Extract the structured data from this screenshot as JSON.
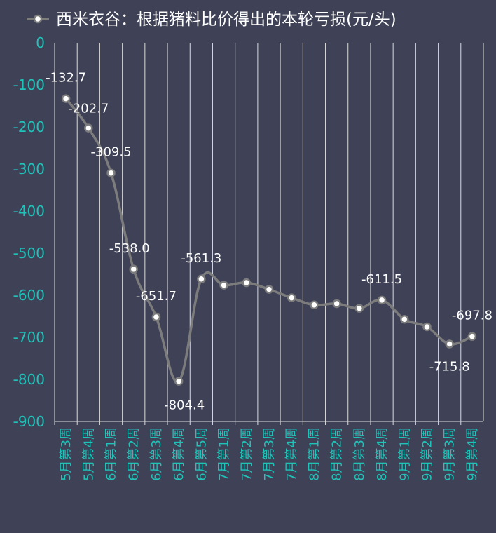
{
  "chart_data": {
    "type": "line",
    "legend": {
      "position": "top-left"
    },
    "categories": [
      "5月第3周",
      "5月第4周",
      "6月第1周",
      "6月第2周",
      "6月第3周",
      "6月第4周",
      "6月第5周",
      "7月第1周",
      "7月第2周",
      "7月第3周",
      "7月第4周",
      "8月第1周",
      "8月第2周",
      "8月第3周",
      "8月第4周",
      "9月第1周",
      "9月第2周",
      "9月第3周",
      "9月第4周"
    ],
    "series": [
      {
        "name": "西米衣谷：根据猪料比价得出的本轮亏损(元/头)",
        "values": [
          -132.7,
          -202.7,
          -309.5,
          -538.0,
          -651.7,
          -804.4,
          -561.3,
          -576,
          -570,
          -586,
          -606,
          -623,
          -620,
          -631,
          -611.5,
          -657,
          -675,
          -715.8,
          -697.8
        ],
        "labels": [
          "-132.7",
          "-202.7",
          "-309.5",
          "-538.0",
          "-651.7",
          "-804.4",
          "-561.3",
          "",
          "",
          "",
          "",
          "",
          "",
          "",
          "-611.5",
          "",
          "",
          "-715.8",
          "-697.8"
        ]
      }
    ],
    "ylim": [
      -900,
      0
    ],
    "yticks": [
      "0",
      "-100",
      "-200",
      "-300",
      "-400",
      "-500",
      "-600",
      "-700",
      "-800",
      "-900"
    ],
    "grid": {
      "vertical": true,
      "horizontal": false
    },
    "colors": {
      "background": "#3f4257",
      "line": "#7c7c7c",
      "marker_fill": "#ffffff",
      "tick_text": "#1fc3b9",
      "label_text": "#ffffff",
      "grid": "#d9d9d9"
    }
  }
}
